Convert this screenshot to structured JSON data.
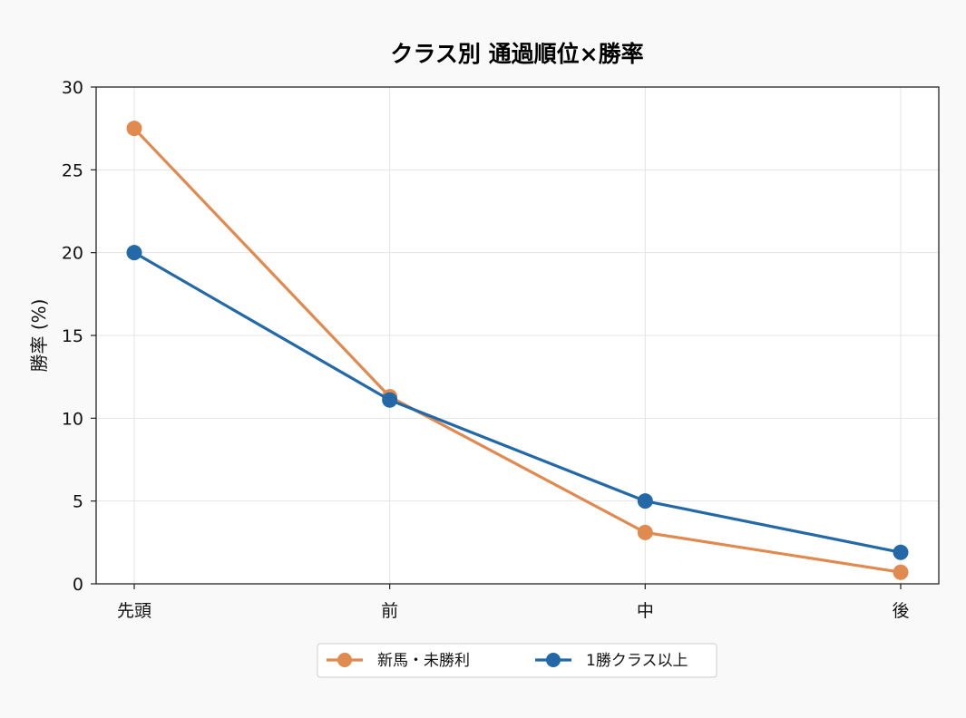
{
  "chart_data": {
    "type": "line",
    "title": "クラス別 通過順位×勝率",
    "xlabel": "",
    "ylabel": "勝率 (%)",
    "categories": [
      "先頭",
      "前",
      "中",
      "後"
    ],
    "ylim": [
      0,
      30
    ],
    "yticks": [
      0,
      5,
      10,
      15,
      20,
      25,
      30
    ],
    "grid": true,
    "legend_position": "bottom-center",
    "series": [
      {
        "name": "新馬・未勝利",
        "color": "#e08a50",
        "values": [
          27.5,
          11.3,
          3.1,
          0.7
        ]
      },
      {
        "name": "1勝クラス以上",
        "color": "#2369a8",
        "values": [
          20.0,
          11.1,
          5.0,
          1.9
        ]
      }
    ]
  }
}
